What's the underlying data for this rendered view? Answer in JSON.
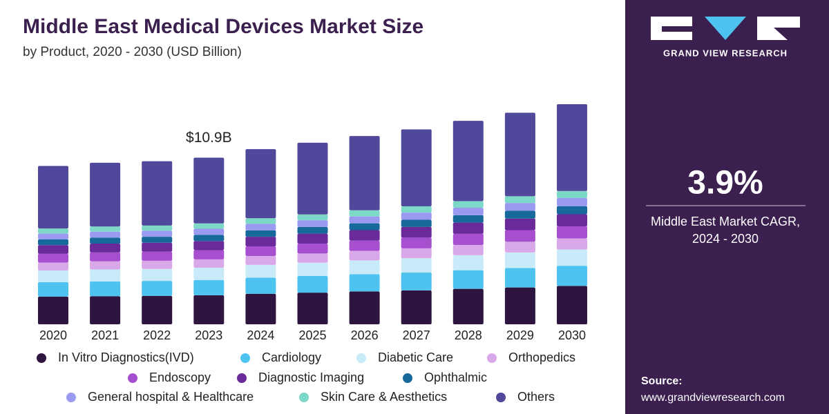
{
  "chart_data": {
    "type": "stacked_bar",
    "title": "Middle East Medical Devices Market Size",
    "subtitle": "by Product, 2020 - 2030 (USD Billion)",
    "annotation": {
      "label": "$10.9B",
      "x": "2023"
    },
    "categories": [
      "2020",
      "2021",
      "2022",
      "2023",
      "2024",
      "2025",
      "2026",
      "2027",
      "2028",
      "2029",
      "2030"
    ],
    "series": [
      {
        "name": "In Vitro Diagnostics(IVD)",
        "color": "#2d1540",
        "values": [
          1.81,
          1.84,
          1.86,
          1.9,
          2.0,
          2.07,
          2.15,
          2.22,
          2.32,
          2.41,
          2.51
        ]
      },
      {
        "name": "Cardiology",
        "color": "#4fc3f0",
        "values": [
          0.95,
          0.97,
          0.98,
          1.0,
          1.05,
          1.09,
          1.13,
          1.17,
          1.22,
          1.27,
          1.32
        ]
      },
      {
        "name": "Diabetic Care",
        "color": "#c9eaf8",
        "values": [
          0.76,
          0.78,
          0.78,
          0.8,
          0.84,
          0.87,
          0.9,
          0.94,
          0.98,
          1.02,
          1.06
        ]
      },
      {
        "name": "Orthopedics",
        "color": "#d9a8e8",
        "values": [
          0.52,
          0.53,
          0.54,
          0.55,
          0.58,
          0.6,
          0.62,
          0.64,
          0.67,
          0.7,
          0.73
        ]
      },
      {
        "name": "Endoscopy",
        "color": "#a64fcf",
        "values": [
          0.57,
          0.58,
          0.59,
          0.6,
          0.63,
          0.65,
          0.68,
          0.7,
          0.73,
          0.76,
          0.79
        ]
      },
      {
        "name": "Diagnostic Imaging",
        "color": "#6a2a9a",
        "values": [
          0.57,
          0.58,
          0.59,
          0.6,
          0.63,
          0.65,
          0.68,
          0.7,
          0.73,
          0.76,
          0.79
        ]
      },
      {
        "name": "Ophthalmic",
        "color": "#16699a",
        "values": [
          0.38,
          0.39,
          0.39,
          0.4,
          0.42,
          0.44,
          0.45,
          0.47,
          0.49,
          0.51,
          0.53
        ]
      },
      {
        "name": "General hospital & Healthcare",
        "color": "#9a9af0",
        "values": [
          0.38,
          0.39,
          0.39,
          0.4,
          0.42,
          0.44,
          0.45,
          0.47,
          0.49,
          0.51,
          0.53
        ]
      },
      {
        "name": "Skin Care & Aesthetics",
        "color": "#7ed8c8",
        "values": [
          0.33,
          0.34,
          0.34,
          0.35,
          0.37,
          0.38,
          0.4,
          0.41,
          0.43,
          0.44,
          0.46
        ]
      },
      {
        "name": "Others",
        "color": "#50489a",
        "values": [
          4.09,
          4.17,
          4.21,
          4.3,
          4.52,
          4.69,
          4.86,
          5.03,
          5.25,
          5.46,
          5.68
        ]
      }
    ]
  },
  "sidebar": {
    "brand": "GRAND VIEW RESEARCH",
    "stat": "3.9%",
    "stat_caption": [
      "Middle East Market CAGR,",
      "2024 - 2030"
    ],
    "source_label": "Source:",
    "source_url": "www.grandviewresearch.com"
  }
}
